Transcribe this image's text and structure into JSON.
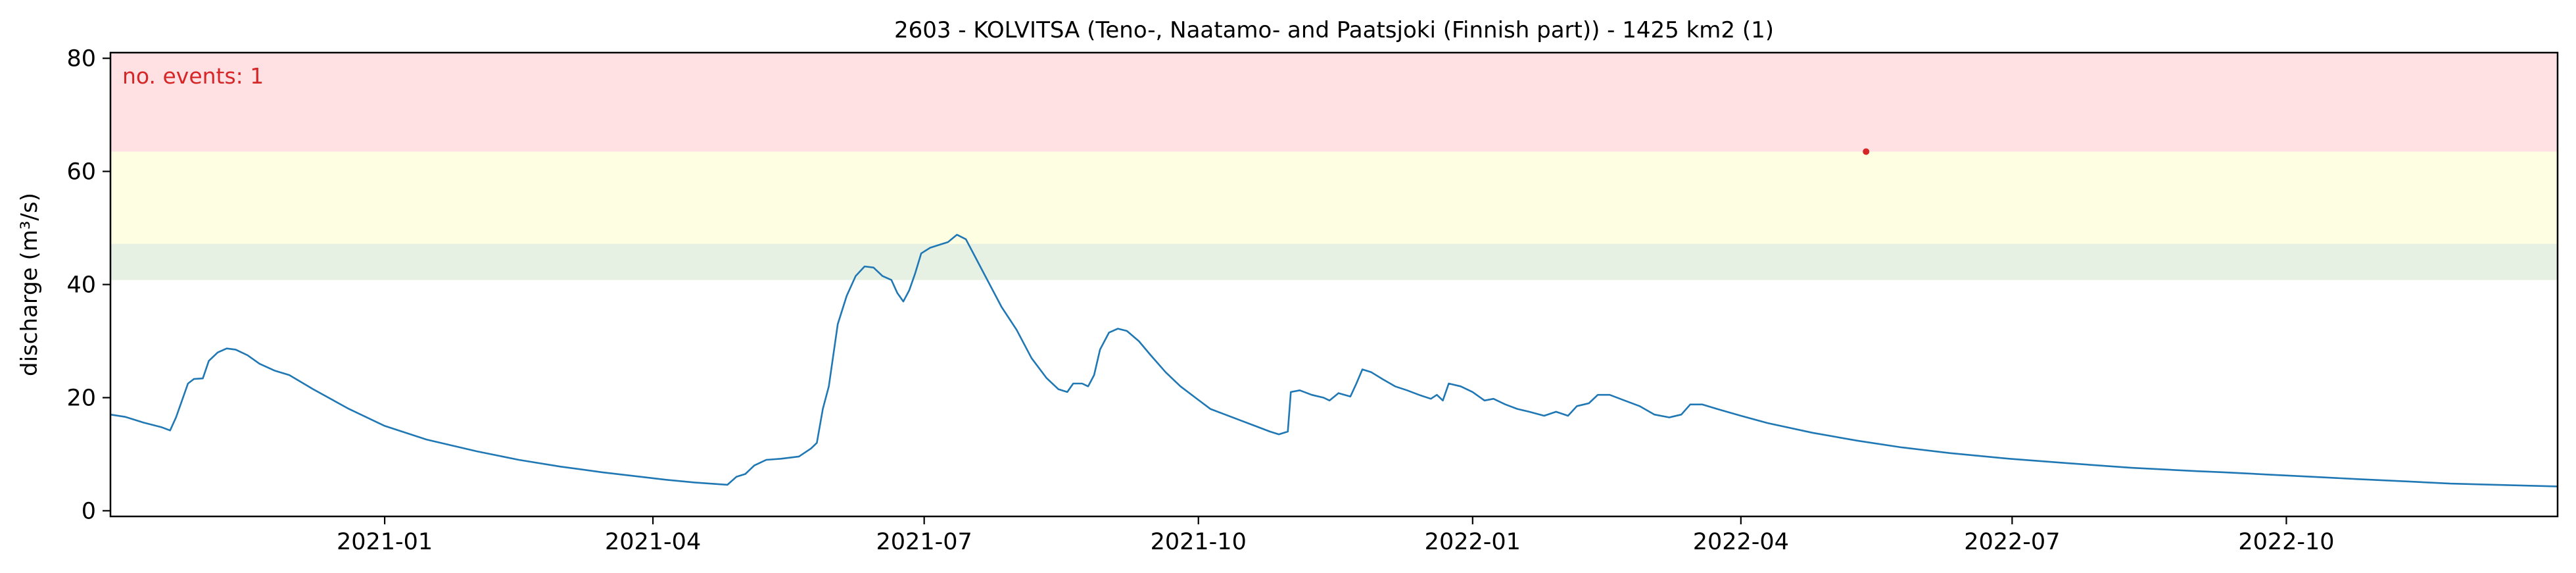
{
  "chart_data": {
    "type": "line",
    "title": "2603 - KOLVITSA (Teno-, Naatamo- and Paatsjoki (Finnish part)) - 1425 km2 (1)",
    "ylabel": "discharge (m³/s)",
    "xlabel": "",
    "annotation": "no. events: 1",
    "xlim": [
      "2020-10-01",
      "2022-12-31"
    ],
    "ylim": [
      -1,
      81
    ],
    "y_ticks": [
      0,
      20,
      40,
      60,
      80
    ],
    "x_ticks": [
      "2021-01-01",
      "2021-04-01",
      "2021-07-01",
      "2021-10-01",
      "2022-01-01",
      "2022-04-01",
      "2022-07-01",
      "2022-10-01"
    ],
    "x_tick_labels": [
      "2021-01",
      "2021-04",
      "2021-07",
      "2021-10",
      "2022-01",
      "2022-04",
      "2022-07",
      "2022-10"
    ],
    "grid": false,
    "bands": [
      {
        "name": "green",
        "from": 40.8,
        "to": 47.2,
        "color": "#e6f1e3"
      },
      {
        "name": "yellow",
        "from": 47.2,
        "to": 63.5,
        "color": "#fefee3"
      },
      {
        "name": "red",
        "from": 63.5,
        "to": 81,
        "color": "#ffe1e4"
      }
    ],
    "series": [
      {
        "color": "#1f77b4",
        "points": [
          [
            "2020-10-01",
            17.0
          ],
          [
            "2020-10-06",
            16.6
          ],
          [
            "2020-10-12",
            15.6
          ],
          [
            "2020-10-18",
            14.8
          ],
          [
            "2020-10-21",
            14.2
          ],
          [
            "2020-10-23",
            16.5
          ],
          [
            "2020-10-25",
            19.5
          ],
          [
            "2020-10-27",
            22.5
          ],
          [
            "2020-10-29",
            23.3
          ],
          [
            "2020-11-01",
            23.4
          ],
          [
            "2020-11-03",
            26.5
          ],
          [
            "2020-11-06",
            28.0
          ],
          [
            "2020-11-09",
            28.7
          ],
          [
            "2020-11-12",
            28.5
          ],
          [
            "2020-11-16",
            27.5
          ],
          [
            "2020-11-20",
            26.0
          ],
          [
            "2020-11-25",
            24.8
          ],
          [
            "2020-11-30",
            24.0
          ],
          [
            "2020-12-08",
            21.5
          ],
          [
            "2020-12-20",
            18.0
          ],
          [
            "2021-01-01",
            15.0
          ],
          [
            "2021-01-15",
            12.6
          ],
          [
            "2021-02-01",
            10.5
          ],
          [
            "2021-02-15",
            9.0
          ],
          [
            "2021-03-01",
            7.8
          ],
          [
            "2021-03-15",
            6.8
          ],
          [
            "2021-03-28",
            6.0
          ],
          [
            "2021-04-05",
            5.5
          ],
          [
            "2021-04-15",
            5.0
          ],
          [
            "2021-04-26",
            4.6
          ],
          [
            "2021-04-29",
            6.0
          ],
          [
            "2021-05-02",
            6.5
          ],
          [
            "2021-05-05",
            8.0
          ],
          [
            "2021-05-09",
            9.0
          ],
          [
            "2021-05-14",
            9.2
          ],
          [
            "2021-05-20",
            9.6
          ],
          [
            "2021-05-24",
            11.0
          ],
          [
            "2021-05-26",
            12.0
          ],
          [
            "2021-05-28",
            18.0
          ],
          [
            "2021-05-30",
            22.0
          ],
          [
            "2021-06-02",
            33.0
          ],
          [
            "2021-06-05",
            38.0
          ],
          [
            "2021-06-08",
            41.5
          ],
          [
            "2021-06-11",
            43.2
          ],
          [
            "2021-06-14",
            43.0
          ],
          [
            "2021-06-17",
            41.5
          ],
          [
            "2021-06-20",
            40.8
          ],
          [
            "2021-06-22",
            38.5
          ],
          [
            "2021-06-24",
            37.0
          ],
          [
            "2021-06-26",
            39.0
          ],
          [
            "2021-06-28",
            42.0
          ],
          [
            "2021-06-30",
            45.5
          ],
          [
            "2021-07-03",
            46.5
          ],
          [
            "2021-07-06",
            47.0
          ],
          [
            "2021-07-09",
            47.5
          ],
          [
            "2021-07-12",
            48.8
          ],
          [
            "2021-07-15",
            48.0
          ],
          [
            "2021-07-18",
            45.0
          ],
          [
            "2021-07-22",
            41.0
          ],
          [
            "2021-07-27",
            36.0
          ],
          [
            "2021-08-01",
            32.0
          ],
          [
            "2021-08-06",
            27.0
          ],
          [
            "2021-08-11",
            23.5
          ],
          [
            "2021-08-15",
            21.5
          ],
          [
            "2021-08-18",
            21.0
          ],
          [
            "2021-08-20",
            22.5
          ],
          [
            "2021-08-23",
            22.5
          ],
          [
            "2021-08-25",
            22.0
          ],
          [
            "2021-08-27",
            24.0
          ],
          [
            "2021-08-29",
            28.5
          ],
          [
            "2021-09-01",
            31.5
          ],
          [
            "2021-09-04",
            32.2
          ],
          [
            "2021-09-07",
            31.8
          ],
          [
            "2021-09-11",
            30.0
          ],
          [
            "2021-09-15",
            27.5
          ],
          [
            "2021-09-20",
            24.5
          ],
          [
            "2021-09-25",
            22.0
          ],
          [
            "2021-09-30",
            20.0
          ],
          [
            "2021-10-05",
            18.0
          ],
          [
            "2021-10-10",
            17.0
          ],
          [
            "2021-10-15",
            16.0
          ],
          [
            "2021-10-20",
            15.0
          ],
          [
            "2021-10-25",
            14.0
          ],
          [
            "2021-10-28",
            13.5
          ],
          [
            "2021-10-31",
            14.0
          ],
          [
            "2021-11-01",
            21.0
          ],
          [
            "2021-11-04",
            21.3
          ],
          [
            "2021-11-08",
            20.5
          ],
          [
            "2021-11-12",
            20.0
          ],
          [
            "2021-11-14",
            19.5
          ],
          [
            "2021-11-17",
            20.8
          ],
          [
            "2021-11-21",
            20.2
          ],
          [
            "2021-11-23",
            22.5
          ],
          [
            "2021-11-25",
            25.0
          ],
          [
            "2021-11-28",
            24.5
          ],
          [
            "2021-12-02",
            23.2
          ],
          [
            "2021-12-06",
            22.0
          ],
          [
            "2021-12-10",
            21.3
          ],
          [
            "2021-12-14",
            20.5
          ],
          [
            "2021-12-18",
            19.8
          ],
          [
            "2021-12-20",
            20.5
          ],
          [
            "2021-12-22",
            19.5
          ],
          [
            "2021-12-24",
            22.5
          ],
          [
            "2021-12-28",
            22.0
          ],
          [
            "2022-01-01",
            21.0
          ],
          [
            "2022-01-05",
            19.5
          ],
          [
            "2022-01-08",
            19.8
          ],
          [
            "2022-01-12",
            18.8
          ],
          [
            "2022-01-16",
            18.0
          ],
          [
            "2022-01-20",
            17.5
          ],
          [
            "2022-01-25",
            16.8
          ],
          [
            "2022-01-29",
            17.5
          ],
          [
            "2022-02-02",
            16.8
          ],
          [
            "2022-02-05",
            18.5
          ],
          [
            "2022-02-09",
            19.0
          ],
          [
            "2022-02-12",
            20.5
          ],
          [
            "2022-02-16",
            20.5
          ],
          [
            "2022-02-21",
            19.5
          ],
          [
            "2022-02-26",
            18.5
          ],
          [
            "2022-03-03",
            17.0
          ],
          [
            "2022-03-08",
            16.5
          ],
          [
            "2022-03-12",
            17.0
          ],
          [
            "2022-03-15",
            18.8
          ],
          [
            "2022-03-19",
            18.8
          ],
          [
            "2022-03-24",
            18.0
          ],
          [
            "2022-04-01",
            16.8
          ],
          [
            "2022-04-10",
            15.5
          ],
          [
            "2022-04-25",
            13.8
          ],
          [
            "2022-05-10",
            12.4
          ],
          [
            "2022-05-25",
            11.2
          ],
          [
            "2022-06-10",
            10.2
          ],
          [
            "2022-06-30",
            9.2
          ],
          [
            "2022-07-20",
            8.4
          ],
          [
            "2022-08-10",
            7.6
          ],
          [
            "2022-09-01",
            7.0
          ],
          [
            "2022-09-10",
            6.8
          ],
          [
            "2022-09-25",
            6.4
          ],
          [
            "2022-10-10",
            6.0
          ],
          [
            "2022-10-25",
            5.6
          ],
          [
            "2022-11-10",
            5.2
          ],
          [
            "2022-11-25",
            4.8
          ],
          [
            "2022-12-10",
            4.6
          ],
          [
            "2022-12-31",
            4.3
          ]
        ]
      }
    ],
    "event_markers": [
      {
        "x": "2022-05-13",
        "y": 63.5,
        "color": "#d62728"
      }
    ]
  }
}
